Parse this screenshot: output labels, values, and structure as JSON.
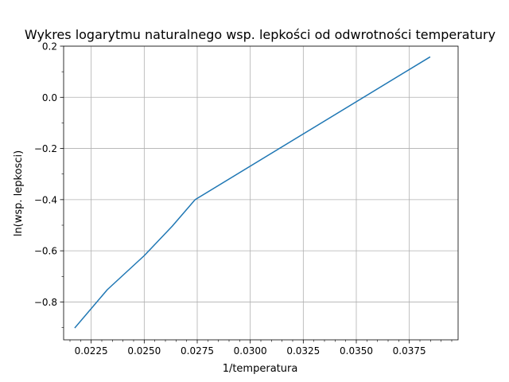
{
  "chart_data": {
    "type": "line",
    "title": "Wykres logarytmu naturalnego wsp. lepkości od odwrotności temperatury",
    "xlabel": "1/temperatura",
    "ylabel": "ln(wsp. lepkosci)",
    "xlim": [
      0.0212,
      0.0398
    ],
    "ylim": [
      -0.948,
      0.2
    ],
    "xticks": [
      0.0225,
      0.025,
      0.0275,
      0.03,
      0.0325,
      0.035,
      0.0375
    ],
    "xtick_labels": [
      "0.0225",
      "0.0250",
      "0.0275",
      "0.0300",
      "0.0325",
      "0.0350",
      "0.0375"
    ],
    "yticks": [
      -0.8,
      -0.6,
      -0.4,
      -0.2,
      0.0,
      0.2
    ],
    "ytick_labels": [
      "−0.8",
      "−0.6",
      "−0.4",
      "−0.2",
      "0.0",
      "0.2"
    ],
    "grid": true,
    "series": [
      {
        "color": "#1f77b4",
        "x": [
          0.02174,
          0.02326,
          0.025,
          0.02632,
          0.0274,
          0.03846
        ],
        "y": [
          -0.9,
          -0.752,
          -0.619,
          -0.504,
          -0.4,
          0.157
        ]
      }
    ]
  }
}
